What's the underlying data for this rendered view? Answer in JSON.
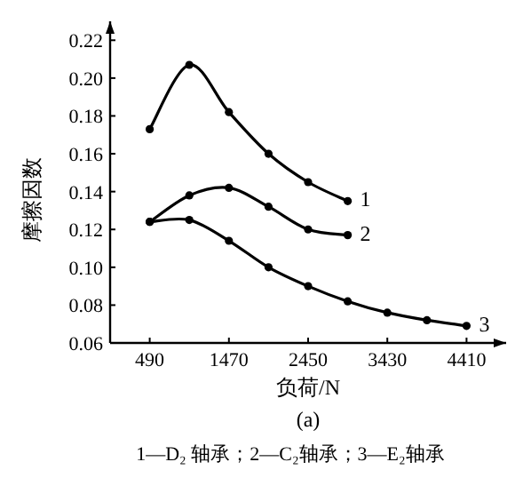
{
  "chart_data": {
    "type": "line",
    "xlabel": "负荷/N",
    "ylabel": "摩擦因数",
    "xlim": [
      0,
      4900
    ],
    "ylim": [
      0.06,
      0.23
    ],
    "xticks": [
      490,
      1470,
      2450,
      3430,
      4410
    ],
    "yticks": [
      0.06,
      0.08,
      {
        "value": 0.1,
        "label": "0.10"
      },
      0.12,
      0.14,
      0.16,
      0.18,
      {
        "value": 0.2,
        "label": "0.20"
      },
      0.22
    ],
    "marker": "circle",
    "line_style": "solid",
    "grid": false,
    "series": [
      {
        "name": "1",
        "color": "#000000",
        "x": [
          490,
          980,
          1470,
          1960,
          2450,
          2940
        ],
        "values": [
          0.173,
          0.207,
          0.182,
          0.16,
          0.145,
          0.135
        ]
      },
      {
        "name": "2",
        "color": "#000000",
        "x": [
          490,
          980,
          1470,
          1960,
          2450,
          2940
        ],
        "values": [
          0.124,
          0.138,
          0.142,
          0.132,
          0.12,
          0.117
        ]
      },
      {
        "name": "3",
        "color": "#000000",
        "x": [
          490,
          980,
          1470,
          1960,
          2450,
          2940,
          3430,
          3920,
          4410
        ],
        "values": [
          0.124,
          0.125,
          0.114,
          0.1,
          0.09,
          0.082,
          0.076,
          0.072,
          0.069
        ]
      }
    ],
    "annotations": [
      "(a)",
      "1—D₂ 轴承；2—C₂轴承；3—E₂轴承"
    ]
  }
}
